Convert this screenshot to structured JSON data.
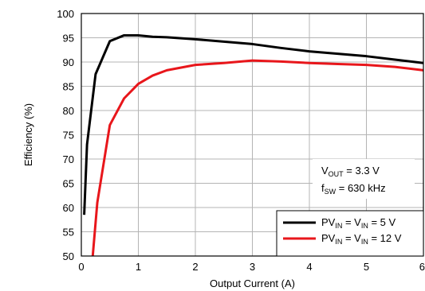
{
  "chart_data": {
    "type": "line",
    "title": "",
    "xlabel": "Output Current (A)",
    "ylabel": "Efficiency (%)",
    "xlim": [
      0,
      6
    ],
    "ylim": [
      50,
      100
    ],
    "x_ticks": [
      "0",
      "1",
      "2",
      "3",
      "4",
      "5",
      "6"
    ],
    "y_ticks": [
      "50",
      "55",
      "60",
      "65",
      "70",
      "75",
      "80",
      "85",
      "90",
      "95",
      "100"
    ],
    "grid": true,
    "legend_position": "bottom-right",
    "series": [
      {
        "name_parts": {
          "a": "PV",
          "a_sub": "IN",
          "b": " = V",
          "b_sub": "IN",
          "c": " = 5 V"
        },
        "color": "#000000",
        "x": [
          0.05,
          0.1,
          0.25,
          0.5,
          0.75,
          1.0,
          1.25,
          1.5,
          2.0,
          2.5,
          3.0,
          3.5,
          4.0,
          4.5,
          5.0,
          5.5,
          6.0
        ],
        "y": [
          58.5,
          73.0,
          87.5,
          94.3,
          95.5,
          95.5,
          95.2,
          95.1,
          94.7,
          94.2,
          93.7,
          92.9,
          92.2,
          91.7,
          91.2,
          90.5,
          89.8
        ]
      },
      {
        "name_parts": {
          "a": "PV",
          "a_sub": "IN",
          "b": " = V",
          "b_sub": "IN",
          "c": " = 12 V"
        },
        "color": "#e8161b",
        "x": [
          0.2,
          0.28,
          0.5,
          0.75,
          1.0,
          1.25,
          1.5,
          2.0,
          2.5,
          3.0,
          3.5,
          4.0,
          4.5,
          5.0,
          5.5,
          6.0
        ],
        "y": [
          50.0,
          61.0,
          77.0,
          82.5,
          85.5,
          87.2,
          88.3,
          89.4,
          89.8,
          90.3,
          90.1,
          89.8,
          89.6,
          89.4,
          89.0,
          88.3
        ]
      }
    ],
    "annotation": {
      "line1": {
        "a": "V",
        "a_sub": "OUT",
        "b": " =  3.3 V"
      },
      "line2": {
        "a": "f",
        "a_sub": "SW",
        "b": " =  630 kHz"
      }
    }
  }
}
